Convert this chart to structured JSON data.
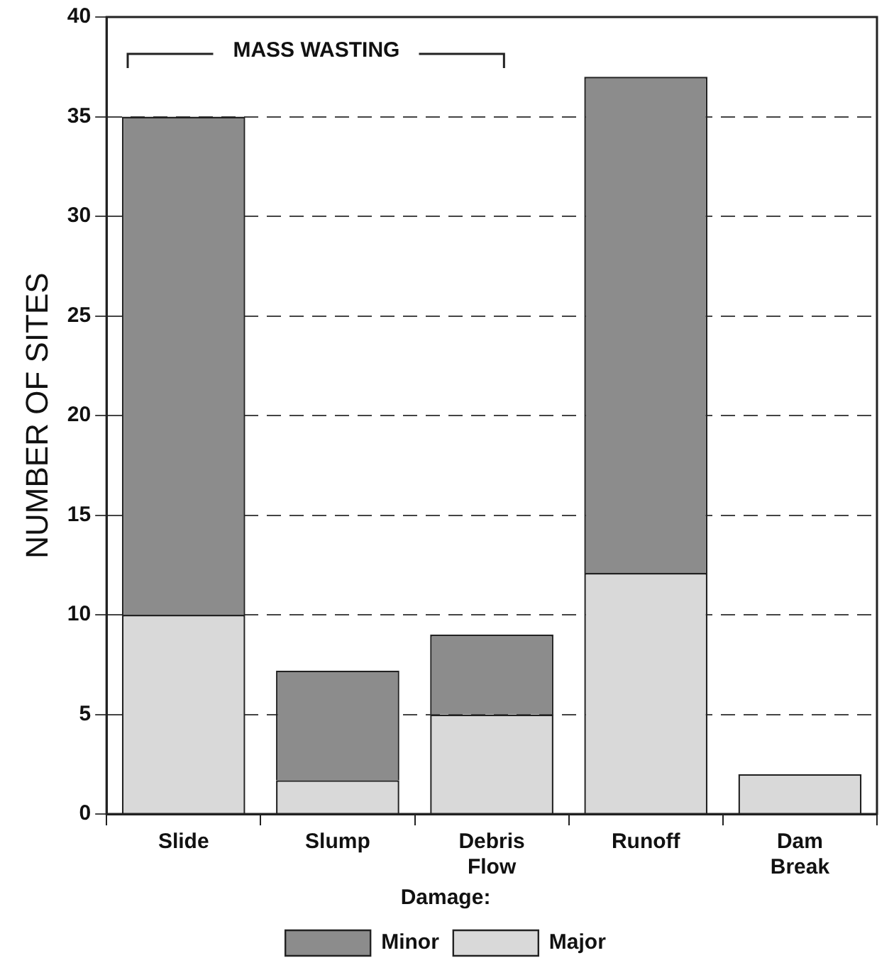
{
  "chart_data": {
    "type": "bar",
    "ylabel": "NUMBER OF SITES",
    "legend_title": "Damage:",
    "categories": [
      "Slide",
      "Slump",
      "Debris\nFlow",
      "Runoff",
      "Dam\nBreak"
    ],
    "series": [
      {
        "name": "Major",
        "color": "#d9d9d9",
        "values": [
          10,
          1.7,
          5,
          12.1,
          2
        ]
      },
      {
        "name": "Minor",
        "color": "#8c8c8c",
        "values": [
          25,
          5.5,
          4,
          24.9,
          0
        ]
      }
    ],
    "stacked": true,
    "ylim": [
      0,
      40
    ],
    "yticks": [
      0,
      5,
      10,
      15,
      20,
      25,
      30,
      35,
      40
    ],
    "grid": "y",
    "line_style": "dashed",
    "legend": "bottom",
    "annotations": [
      "MASS WASTING"
    ]
  }
}
